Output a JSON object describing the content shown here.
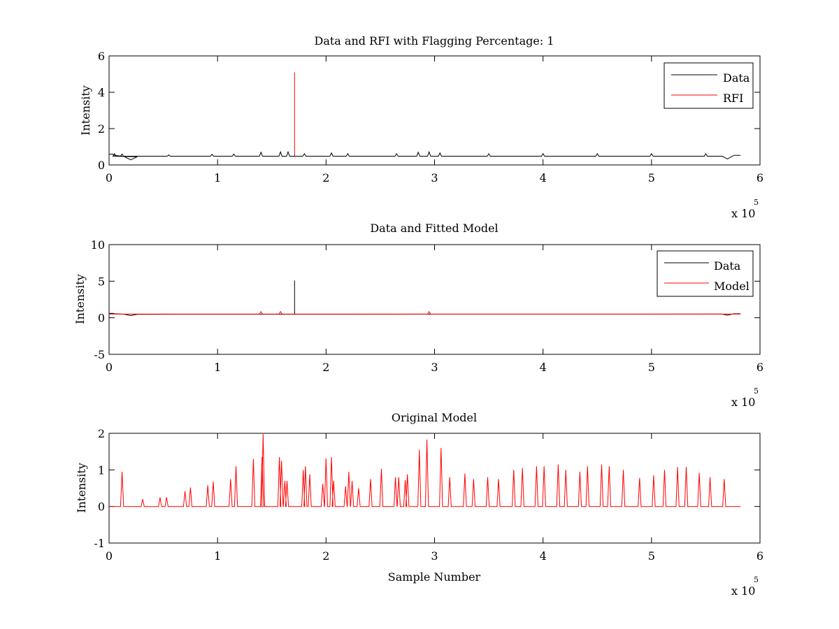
{
  "chart_data": [
    {
      "type": "line",
      "title": "Data and RFI with Flagging Percentage: 1",
      "xlabel": "",
      "ylabel": "Intensity",
      "xlim": [
        0,
        600000
      ],
      "ylim": [
        0,
        6
      ],
      "xticks": [
        0,
        1,
        2,
        3,
        4,
        5,
        6
      ],
      "yticks": [
        0,
        2,
        4,
        6
      ],
      "x_exponent": "x 10",
      "x_exponent_power": "5",
      "legend": "top-right",
      "baseline": 0.48,
      "series": [
        {
          "name": "Data",
          "color": "#000000"
        },
        {
          "name": "RFI",
          "color": "#ff0000"
        }
      ],
      "peaks": [
        {
          "x": 5000,
          "y": 0.62,
          "series": "Data"
        },
        {
          "x": 12000,
          "y": 0.6,
          "series": "Data"
        },
        {
          "x": 55000,
          "y": 0.55,
          "series": "Data"
        },
        {
          "x": 95000,
          "y": 0.58,
          "series": "Data"
        },
        {
          "x": 115000,
          "y": 0.6,
          "series": "Data"
        },
        {
          "x": 140000,
          "y": 0.7,
          "series": "Data"
        },
        {
          "x": 158000,
          "y": 0.72,
          "series": "Data"
        },
        {
          "x": 165000,
          "y": 0.72,
          "series": "Data"
        },
        {
          "x": 171000,
          "y": 5.1,
          "series": "RFI"
        },
        {
          "x": 180000,
          "y": 0.62,
          "series": "Data"
        },
        {
          "x": 205000,
          "y": 0.66,
          "series": "Data"
        },
        {
          "x": 220000,
          "y": 0.62,
          "series": "Data"
        },
        {
          "x": 265000,
          "y": 0.62,
          "series": "Data"
        },
        {
          "x": 285000,
          "y": 0.7,
          "series": "Data"
        },
        {
          "x": 295000,
          "y": 0.72,
          "series": "Data"
        },
        {
          "x": 305000,
          "y": 0.66,
          "series": "Data"
        },
        {
          "x": 350000,
          "y": 0.62,
          "series": "Data"
        },
        {
          "x": 400000,
          "y": 0.62,
          "series": "Data"
        },
        {
          "x": 450000,
          "y": 0.62,
          "series": "Data"
        },
        {
          "x": 500000,
          "y": 0.62,
          "series": "Data"
        },
        {
          "x": 550000,
          "y": 0.62,
          "series": "Data"
        }
      ],
      "xmax_data": 582000
    },
    {
      "type": "line",
      "title": "Data and Fitted Model",
      "xlabel": "",
      "ylabel": "Intensity",
      "xlim": [
        0,
        600000
      ],
      "ylim": [
        -5,
        10
      ],
      "xticks": [
        0,
        1,
        2,
        3,
        4,
        5,
        6
      ],
      "yticks": [
        -5,
        0,
        5,
        10
      ],
      "x_exponent": "x 10",
      "x_exponent_power": "5",
      "legend": "top-right",
      "baseline": 0.5,
      "series": [
        {
          "name": "Data",
          "color": "#000000"
        },
        {
          "name": "Model",
          "color": "#ff0000"
        }
      ],
      "peaks": [
        {
          "x": 171000,
          "y": 5.1,
          "series": "Data"
        },
        {
          "x": 140000,
          "y": 0.85,
          "series": "Model"
        },
        {
          "x": 158000,
          "y": 0.85,
          "series": "Model"
        },
        {
          "x": 295000,
          "y": 0.85,
          "series": "Model"
        }
      ],
      "xmax_data": 582000
    },
    {
      "type": "line",
      "title": "Original Model",
      "xlabel": "Sample Number",
      "ylabel": "Intensity",
      "xlim": [
        0,
        600000
      ],
      "ylim": [
        -1,
        2
      ],
      "xticks": [
        0,
        1,
        2,
        3,
        4,
        5,
        6
      ],
      "yticks": [
        -1,
        0,
        1,
        2
      ],
      "x_exponent": "x 10",
      "x_exponent_power": "5",
      "legend": "none",
      "baseline": 0,
      "series": [
        {
          "name": "",
          "color": "#ff0000"
        }
      ],
      "peaks": [
        {
          "x": 12000,
          "y": 0.95
        },
        {
          "x": 31000,
          "y": 0.2
        },
        {
          "x": 47000,
          "y": 0.25
        },
        {
          "x": 53000,
          "y": 0.25
        },
        {
          "x": 70000,
          "y": 0.42
        },
        {
          "x": 75000,
          "y": 0.52
        },
        {
          "x": 91000,
          "y": 0.58
        },
        {
          "x": 96000,
          "y": 0.68
        },
        {
          "x": 112000,
          "y": 0.75
        },
        {
          "x": 117000,
          "y": 1.1
        },
        {
          "x": 133000,
          "y": 1.3
        },
        {
          "x": 142000,
          "y": 1.98
        },
        {
          "x": 141000,
          "y": 1.35
        },
        {
          "x": 157000,
          "y": 1.35
        },
        {
          "x": 159000,
          "y": 1.25
        },
        {
          "x": 162000,
          "y": 0.7
        },
        {
          "x": 164000,
          "y": 0.7
        },
        {
          "x": 179000,
          "y": 1.0
        },
        {
          "x": 181000,
          "y": 1.1
        },
        {
          "x": 185000,
          "y": 0.88
        },
        {
          "x": 197000,
          "y": 0.62
        },
        {
          "x": 200000,
          "y": 1.32
        },
        {
          "x": 205000,
          "y": 1.35
        },
        {
          "x": 207000,
          "y": 0.7
        },
        {
          "x": 218000,
          "y": 0.55
        },
        {
          "x": 221000,
          "y": 0.95
        },
        {
          "x": 224000,
          "y": 0.7
        },
        {
          "x": 230000,
          "y": 0.5
        },
        {
          "x": 241000,
          "y": 0.75
        },
        {
          "x": 251000,
          "y": 1.03
        },
        {
          "x": 264000,
          "y": 0.8
        },
        {
          "x": 267000,
          "y": 0.8
        },
        {
          "x": 273000,
          "y": 0.72
        },
        {
          "x": 275000,
          "y": 0.88
        },
        {
          "x": 286000,
          "y": 1.55
        },
        {
          "x": 293000,
          "y": 1.83
        },
        {
          "x": 306000,
          "y": 1.6
        },
        {
          "x": 314000,
          "y": 0.8
        },
        {
          "x": 328000,
          "y": 0.9
        },
        {
          "x": 336000,
          "y": 0.75
        },
        {
          "x": 349000,
          "y": 0.8
        },
        {
          "x": 359000,
          "y": 0.75
        },
        {
          "x": 373000,
          "y": 1.0
        },
        {
          "x": 381000,
          "y": 1.05
        },
        {
          "x": 394000,
          "y": 1.1
        },
        {
          "x": 401000,
          "y": 1.1
        },
        {
          "x": 414000,
          "y": 1.15
        },
        {
          "x": 421000,
          "y": 1.0
        },
        {
          "x": 434000,
          "y": 0.95
        },
        {
          "x": 441000,
          "y": 1.1
        },
        {
          "x": 454000,
          "y": 1.15
        },
        {
          "x": 461000,
          "y": 1.1
        },
        {
          "x": 474000,
          "y": 1.0
        },
        {
          "x": 489000,
          "y": 0.78
        },
        {
          "x": 502000,
          "y": 0.85
        },
        {
          "x": 512000,
          "y": 1.0
        },
        {
          "x": 524000,
          "y": 1.08
        },
        {
          "x": 532000,
          "y": 1.08
        },
        {
          "x": 544000,
          "y": 0.92
        },
        {
          "x": 554000,
          "y": 0.8
        },
        {
          "x": 567000,
          "y": 0.75
        }
      ],
      "xmax_data": 582000
    }
  ]
}
